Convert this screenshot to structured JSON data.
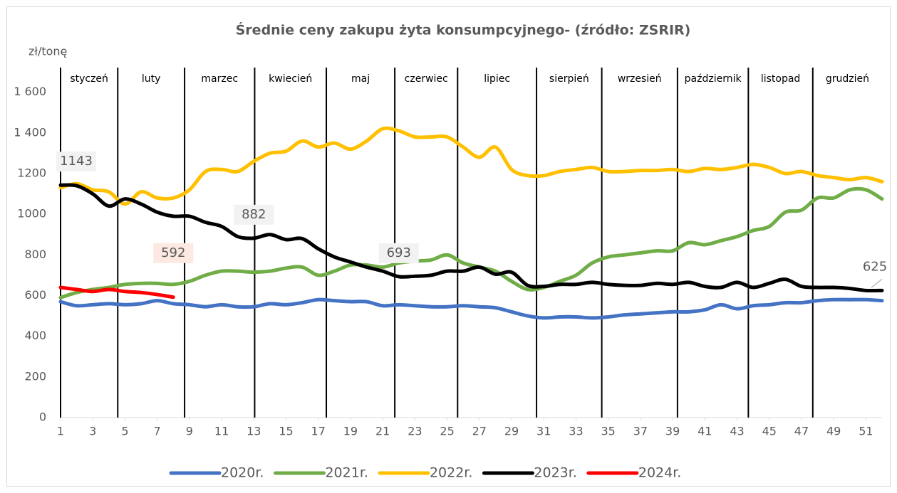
{
  "chart_data": {
    "type": "line",
    "title": "Średnie ceny zakupu żyta konsumpcyjnego- (źródło: ZSRIR)",
    "y_label": "zł/tonę",
    "x": [
      1,
      2,
      3,
      4,
      5,
      6,
      7,
      8,
      9,
      10,
      11,
      12,
      13,
      14,
      15,
      16,
      17,
      18,
      19,
      20,
      21,
      22,
      23,
      24,
      25,
      26,
      27,
      28,
      29,
      30,
      31,
      32,
      33,
      34,
      35,
      36,
      37,
      38,
      39,
      40,
      41,
      42,
      43,
      44,
      45,
      46,
      47,
      48,
      49,
      50,
      51,
      52
    ],
    "xlim": [
      1,
      52
    ],
    "xticks": [
      1,
      3,
      5,
      7,
      9,
      11,
      13,
      15,
      17,
      19,
      21,
      23,
      25,
      27,
      29,
      31,
      33,
      35,
      37,
      39,
      41,
      43,
      45,
      47,
      49,
      51
    ],
    "ylim": [
      0,
      1700
    ],
    "yticks": [
      0,
      200,
      400,
      600,
      800,
      1000,
      1200,
      {
        "value": 1400,
        "label": "1 400"
      },
      {
        "value": 1600,
        "label": "1 600"
      }
    ],
    "months": [
      {
        "label": "styczeń",
        "x": 1
      },
      {
        "label": "luty",
        "x": 4.55
      },
      {
        "label": "marzec",
        "x": 8.7
      },
      {
        "label": "kwiecień",
        "x": 13.05
      },
      {
        "label": "maj",
        "x": 17.5
      },
      {
        "label": "czerwiec",
        "x": 21.75
      },
      {
        "label": "lipiec",
        "x": 25.65
      },
      {
        "label": "sierpień",
        "x": 30.55
      },
      {
        "label": "wrzesień",
        "x": 34.6
      },
      {
        "label": "październik",
        "x": 39.3
      },
      {
        "label": "listopad",
        "x": 43.7
      },
      {
        "label": "grudzień",
        "x": 47.7
      }
    ],
    "series": [
      {
        "name": "2020r.",
        "color": "#4472c4",
        "values": [
          570,
          550,
          555,
          560,
          555,
          560,
          575,
          560,
          555,
          545,
          555,
          545,
          545,
          560,
          555,
          565,
          580,
          575,
          570,
          570,
          550,
          555,
          550,
          545,
          545,
          550,
          545,
          540,
          520,
          500,
          490,
          495,
          495,
          490,
          495,
          505,
          510,
          515,
          520,
          520,
          530,
          555,
          535,
          550,
          555,
          565,
          565,
          575,
          580,
          580,
          580,
          575
        ]
      },
      {
        "name": "2021r.",
        "color": "#70ad47",
        "values": [
          590,
          615,
          630,
          640,
          655,
          660,
          660,
          655,
          670,
          700,
          720,
          720,
          715,
          720,
          735,
          740,
          700,
          720,
          750,
          750,
          740,
          760,
          770,
          775,
          800,
          760,
          740,
          720,
          670,
          630,
          640,
          670,
          700,
          760,
          790,
          800,
          810,
          820,
          820,
          860,
          850,
          870,
          890,
          920,
          940,
          1010,
          1020,
          1080,
          1080,
          1120,
          1120,
          1075
        ]
      },
      {
        "name": "2022r.",
        "color": "#ffc000",
        "values": [
          1130,
          1150,
          1120,
          1110,
          1050,
          1110,
          1080,
          1080,
          1120,
          1210,
          1220,
          1210,
          1260,
          1300,
          1310,
          1360,
          1330,
          1350,
          1320,
          1360,
          1420,
          1410,
          1380,
          1380,
          1380,
          1330,
          1280,
          1330,
          1220,
          1190,
          1190,
          1210,
          1220,
          1230,
          1210,
          1210,
          1215,
          1215,
          1220,
          1210,
          1225,
          1220,
          1230,
          1245,
          1230,
          1200,
          1210,
          1190,
          1180,
          1170,
          1180,
          1160
        ]
      },
      {
        "name": "2023r.",
        "color": "#000000",
        "label_weeks": [
          1,
          13,
          22,
          52
        ],
        "values": [
          1143,
          1140,
          1100,
          1040,
          1075,
          1050,
          1010,
          990,
          990,
          960,
          940,
          890,
          882,
          900,
          875,
          880,
          830,
          790,
          765,
          740,
          720,
          693,
          695,
          700,
          720,
          720,
          740,
          705,
          715,
          650,
          645,
          655,
          655,
          665,
          655,
          650,
          650,
          660,
          655,
          665,
          645,
          640,
          665,
          640,
          660,
          680,
          645,
          640,
          640,
          635,
          625,
          625
        ]
      },
      {
        "name": "2024r.",
        "color": "#ff0000",
        "label_weeks": [
          8
        ],
        "values": [
          640,
          630,
          620,
          630,
          620,
          615,
          605,
          592,
          null,
          null,
          null,
          null,
          null,
          null,
          null,
          null,
          null,
          null,
          null,
          null,
          null,
          null,
          null,
          null,
          null,
          null,
          null,
          null,
          null,
          null,
          null,
          null,
          null,
          null,
          null,
          null,
          null,
          null,
          null,
          null,
          null,
          null,
          null,
          null,
          null,
          null,
          null,
          null,
          null,
          null,
          null,
          null
        ]
      }
    ]
  }
}
